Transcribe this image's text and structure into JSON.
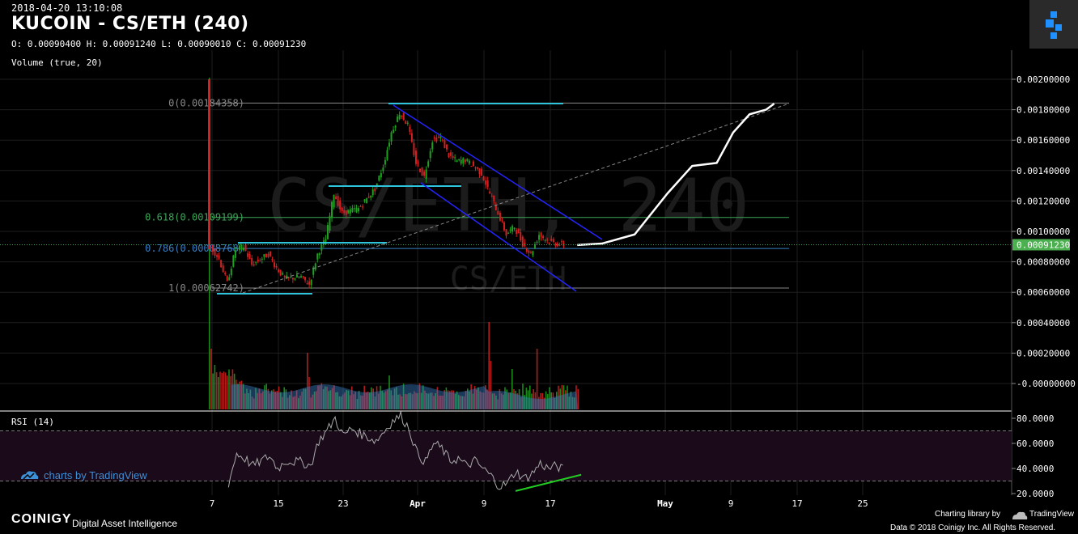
{
  "header": {
    "timestamp": "2018-04-20 13:10:08",
    "title": "KUCOIN - CS/ETH (240)",
    "ohlc": "O: 0.00090400 H: 0.00091240 L: 0.00090010 C: 0.00091230",
    "volume_label": "Volume (true, 20)",
    "rsi_label": "RSI (14)"
  },
  "watermark": {
    "main": "CS/ETH, 240",
    "sub": "CS/ETH"
  },
  "footer": {
    "tv_brand": "charts by TradingView",
    "coinigy": "COINIGY",
    "coinigy_tag": "Digital Asset Intelligence",
    "charting_lib": "Charting library by",
    "tv_small": "TradingView",
    "copyright": "Data © 2018   Coinigy Inc. All Rights Reserved."
  },
  "colors": {
    "up": "#1fa01f",
    "down": "#d42020",
    "fib_line": "#2ec4dc",
    "channel": "#2424ff",
    "projection": "#ffffff",
    "rsi_divergence": "#22cc22",
    "price_tag": "#4caf50",
    "volume_ma": "#3a7fc6"
  },
  "chart_data": {
    "type": "candlestick",
    "pair": "CS/ETH",
    "exchange": "KUCOIN",
    "interval": "240",
    "x_ticks": [
      "7",
      "15",
      "23",
      "Apr",
      "9",
      "17",
      "May",
      "9",
      "17",
      "25"
    ],
    "price_axis": {
      "ticks": [
        "0.00200000",
        "0.00180000",
        "0.00160000",
        "0.00140000",
        "0.00120000",
        "0.00100000",
        "0.00080000",
        "0.00060000",
        "0.00040000",
        "0.00020000",
        "-0.00000000"
      ],
      "last_price": "0.00091230"
    },
    "fibonacci": [
      {
        "level": "0",
        "price": 0.00184358,
        "label": "0(0.00184358)"
      },
      {
        "level": "0.618",
        "price": 0.00109199,
        "label": "0.618(0.00109199)"
      },
      {
        "level": "0.786",
        "price": 0.00088768,
        "label": "0.786(0.00088768)"
      },
      {
        "level": "1",
        "price": 0.00062742,
        "label": "1(0.00062742)"
      }
    ],
    "price_series": [
      {
        "day": 7,
        "p": 0.0009
      },
      {
        "day": 8,
        "p": 0.00082
      },
      {
        "day": 9,
        "p": 0.00066
      },
      {
        "day": 10,
        "p": 0.00088
      },
      {
        "day": 11,
        "p": 0.0009
      },
      {
        "day": 12,
        "p": 0.00078
      },
      {
        "day": 14,
        "p": 0.00085
      },
      {
        "day": 15,
        "p": 0.00076
      },
      {
        "day": 16,
        "p": 0.00069
      },
      {
        "day": 18,
        "p": 0.0007
      },
      {
        "day": 19,
        "p": 0.00065
      },
      {
        "day": 20,
        "p": 0.00085
      },
      {
        "day": 21,
        "p": 0.00095
      },
      {
        "day": 22,
        "p": 0.00125
      },
      {
        "day": 23,
        "p": 0.00112
      },
      {
        "day": 25,
        "p": 0.00115
      },
      {
        "day": 27,
        "p": 0.00128
      },
      {
        "day": 28,
        "p": 0.00143
      },
      {
        "day": 29,
        "p": 0.00165
      },
      {
        "day": 30,
        "p": 0.00178
      },
      {
        "day": 31,
        "p": 0.0017
      },
      {
        "day": 32,
        "p": 0.00145
      },
      {
        "day": 33,
        "p": 0.00136
      },
      {
        "day": 34,
        "p": 0.0016
      },
      {
        "day": 35,
        "p": 0.00162
      },
      {
        "day": 36,
        "p": 0.0015
      },
      {
        "day": 37,
        "p": 0.00146
      },
      {
        "day": 38,
        "p": 0.00147
      },
      {
        "day": 39,
        "p": 0.00143
      },
      {
        "day": 40,
        "p": 0.00138
      },
      {
        "day": 41,
        "p": 0.00125
      },
      {
        "day": 42,
        "p": 0.00112
      },
      {
        "day": 43,
        "p": 0.00098
      },
      {
        "day": 44,
        "p": 0.00103
      },
      {
        "day": 45,
        "p": 0.00092
      },
      {
        "day": 46,
        "p": 0.00085
      },
      {
        "day": 47,
        "p": 0.00098
      },
      {
        "day": 48,
        "p": 0.00094
      },
      {
        "day": 49,
        "p": 0.00092
      },
      {
        "day": 50,
        "p": 0.00091
      }
    ],
    "projection": [
      {
        "day": 50,
        "p": 0.00091
      },
      {
        "day": 53,
        "p": 0.00092
      },
      {
        "day": 57,
        "p": 0.00098
      },
      {
        "day": 61,
        "p": 0.00125
      },
      {
        "day": 64,
        "p": 0.00143
      },
      {
        "day": 67,
        "p": 0.00145
      },
      {
        "day": 69,
        "p": 0.00165
      },
      {
        "day": 71,
        "p": 0.00177
      },
      {
        "day": 73,
        "p": 0.0018
      },
      {
        "day": 74,
        "p": 0.00184
      }
    ],
    "volume": {
      "ticks": [
        "0.00040000",
        "0.00020000",
        "-0.00000000"
      ]
    },
    "rsi": {
      "period": 14,
      "ticks": [
        "80.0000",
        "60.0000",
        "40.0000",
        "20.0000"
      ],
      "overbought": 70,
      "oversold": 30,
      "values": [
        {
          "day": 9,
          "v": 28
        },
        {
          "day": 10,
          "v": 52
        },
        {
          "day": 11,
          "v": 48
        },
        {
          "day": 12,
          "v": 42
        },
        {
          "day": 14,
          "v": 50
        },
        {
          "day": 15,
          "v": 40
        },
        {
          "day": 16,
          "v": 46
        },
        {
          "day": 18,
          "v": 45
        },
        {
          "day": 19,
          "v": 42
        },
        {
          "day": 20,
          "v": 62
        },
        {
          "day": 21,
          "v": 70
        },
        {
          "day": 22,
          "v": 80
        },
        {
          "day": 23,
          "v": 66
        },
        {
          "day": 24,
          "v": 72
        },
        {
          "day": 25,
          "v": 68
        },
        {
          "day": 27,
          "v": 62
        },
        {
          "day": 28,
          "v": 70
        },
        {
          "day": 29,
          "v": 78
        },
        {
          "day": 30,
          "v": 82
        },
        {
          "day": 31,
          "v": 72
        },
        {
          "day": 32,
          "v": 52
        },
        {
          "day": 33,
          "v": 45
        },
        {
          "day": 34,
          "v": 60
        },
        {
          "day": 35,
          "v": 56
        },
        {
          "day": 36,
          "v": 46
        },
        {
          "day": 37,
          "v": 48
        },
        {
          "day": 38,
          "v": 42
        },
        {
          "day": 39,
          "v": 46
        },
        {
          "day": 40,
          "v": 40
        },
        {
          "day": 41,
          "v": 34
        },
        {
          "day": 42,
          "v": 26
        },
        {
          "day": 43,
          "v": 28
        },
        {
          "day": 44,
          "v": 38
        },
        {
          "day": 45,
          "v": 32
        },
        {
          "day": 46,
          "v": 36
        },
        {
          "day": 47,
          "v": 44
        },
        {
          "day": 48,
          "v": 40
        },
        {
          "day": 49,
          "v": 42
        },
        {
          "day": 50,
          "v": 38
        }
      ],
      "divergence": [
        {
          "day": 43,
          "v": 22
        },
        {
          "day": 51,
          "v": 35
        }
      ]
    }
  }
}
